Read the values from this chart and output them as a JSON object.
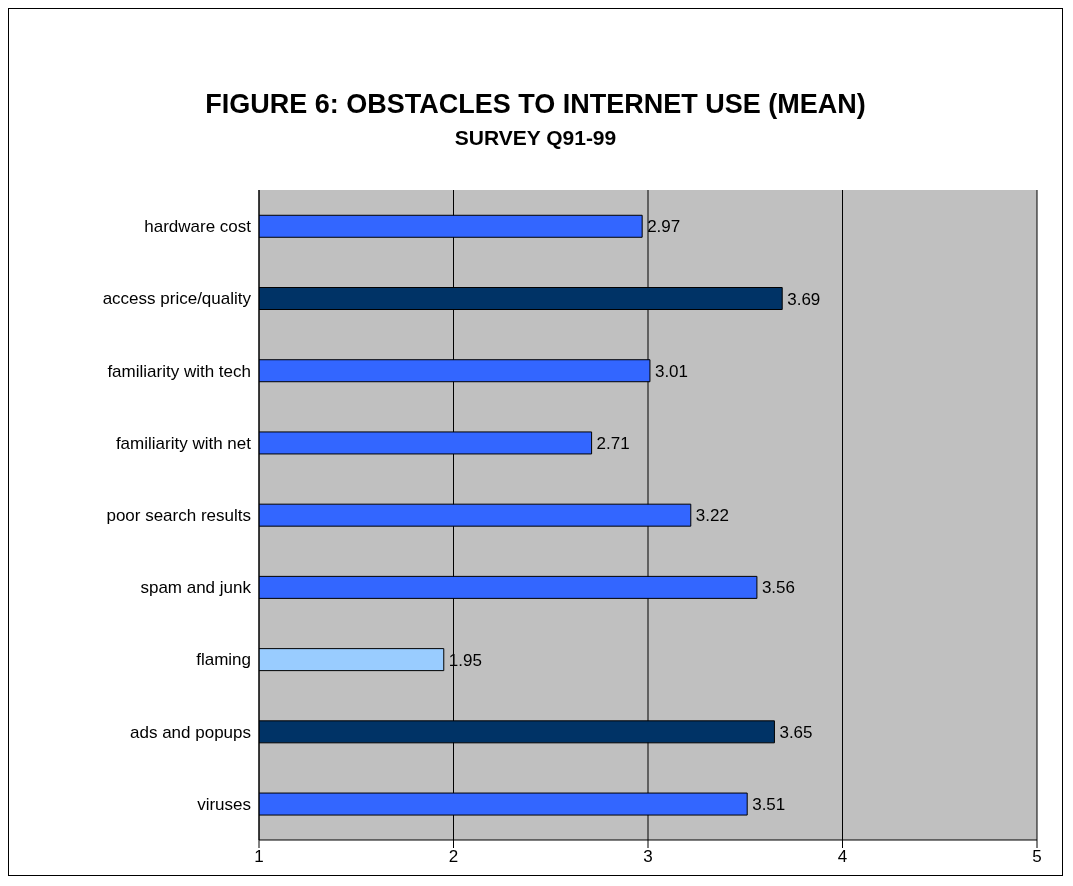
{
  "chart_data": {
    "type": "bar",
    "orientation": "horizontal",
    "title": "FIGURE 6: OBSTACLES TO INTERNET USE (MEAN)",
    "subtitle": "SURVEY Q91-99",
    "categories": [
      "hardware cost",
      "access price/quality",
      "familiarity with tech",
      "familiarity with net",
      "poor search results",
      "spam and junk",
      "flaming",
      "ads and popups",
      "viruses"
    ],
    "values": [
      2.97,
      3.69,
      3.01,
      2.71,
      3.22,
      3.56,
      1.95,
      3.65,
      3.51
    ],
    "colors": [
      "#3366ff",
      "#003366",
      "#3366ff",
      "#3366ff",
      "#3366ff",
      "#3366ff",
      "#99ccff",
      "#003366",
      "#3366ff"
    ],
    "xlim": [
      1,
      5
    ],
    "xticks": [
      1,
      2,
      3,
      4,
      5
    ],
    "grid": "x",
    "data_labels": true,
    "legend": false
  }
}
